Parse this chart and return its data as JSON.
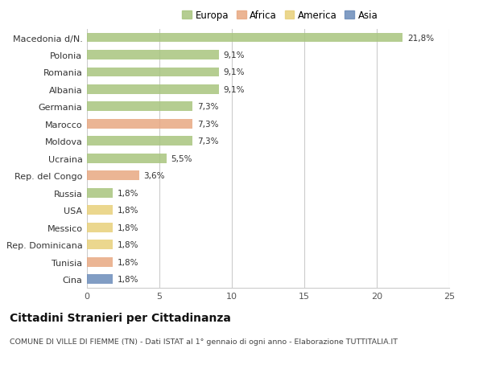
{
  "categories": [
    "Macedonia d/N.",
    "Polonia",
    "Romania",
    "Albania",
    "Germania",
    "Marocco",
    "Moldova",
    "Ucraina",
    "Rep. del Congo",
    "Russia",
    "USA",
    "Messico",
    "Rep. Dominicana",
    "Tunisia",
    "Cina"
  ],
  "values": [
    21.8,
    9.1,
    9.1,
    9.1,
    7.3,
    7.3,
    7.3,
    5.5,
    3.6,
    1.8,
    1.8,
    1.8,
    1.8,
    1.8,
    1.8
  ],
  "continents": [
    "Europa",
    "Europa",
    "Europa",
    "Europa",
    "Europa",
    "Africa",
    "Europa",
    "Europa",
    "Africa",
    "Europa",
    "America",
    "America",
    "America",
    "Africa",
    "Asia"
  ],
  "colors": {
    "Europa": "#a8c57e",
    "Africa": "#e8a882",
    "America": "#e8d07a",
    "Asia": "#6b8cba"
  },
  "labels": [
    "21,8%",
    "9,1%",
    "9,1%",
    "9,1%",
    "7,3%",
    "7,3%",
    "7,3%",
    "5,5%",
    "3,6%",
    "1,8%",
    "1,8%",
    "1,8%",
    "1,8%",
    "1,8%",
    "1,8%"
  ],
  "xlim": [
    0,
    25
  ],
  "xticks": [
    0,
    5,
    10,
    15,
    20,
    25
  ],
  "title": "Cittadini Stranieri per Cittadinanza",
  "subtitle": "COMUNE DI VILLE DI FIEMME (TN) - Dati ISTAT al 1° gennaio di ogni anno - Elaborazione TUTTITALIA.IT",
  "background_color": "#ffffff",
  "bar_height": 0.55,
  "grid_color": "#cccccc",
  "label_fontsize": 7.5,
  "ytick_fontsize": 8,
  "xtick_fontsize": 8,
  "title_fontsize": 10,
  "subtitle_fontsize": 6.8,
  "legend_fontsize": 8.5
}
